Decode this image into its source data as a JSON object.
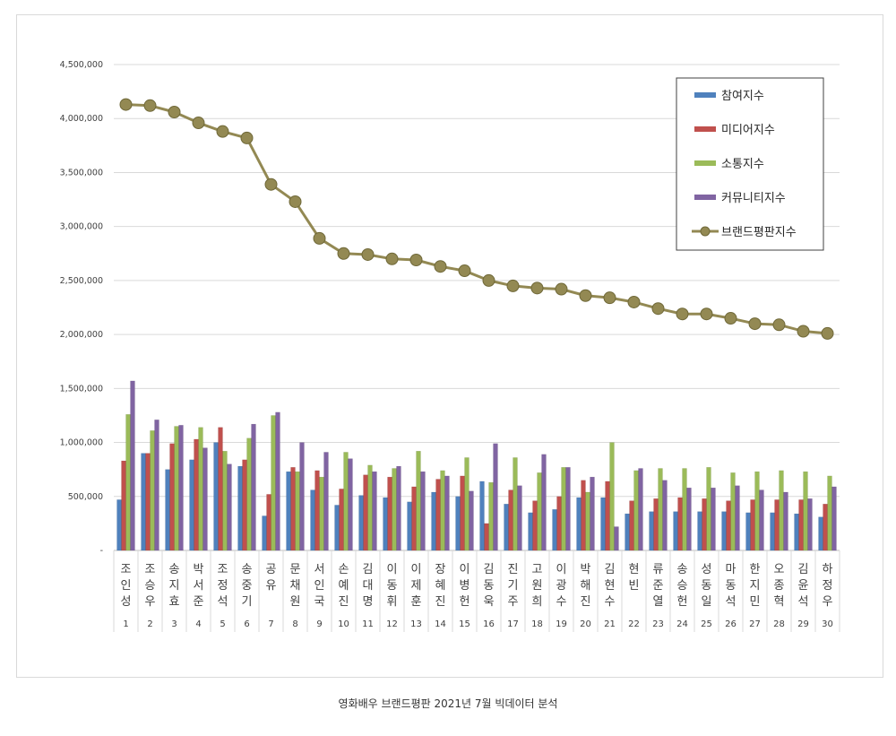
{
  "caption": "영화배우 브랜드평판  2021년 7월 빅데이터 분석",
  "chart_data": {
    "type": "bar",
    "ylim": [
      0,
      4500000
    ],
    "y_ticks": [
      "-",
      "500,000",
      "1,000,000",
      "1,500,000",
      "2,000,000",
      "2,500,000",
      "3,000,000",
      "3,500,000",
      "4,000,000",
      "4,500,000"
    ],
    "grid": true,
    "legend_position": "top-right",
    "categories": [
      "조인성",
      "조승우",
      "송지효",
      "박서준",
      "조정석",
      "송중기",
      "공유",
      "문채원",
      "서인국",
      "손예진",
      "김대명",
      "이동휘",
      "이제훈",
      "장혜진",
      "이병헌",
      "김동욱",
      "진기주",
      "고원희",
      "이광수",
      "박해진",
      "김현수",
      "현빈",
      "류준열",
      "송승헌",
      "성동일",
      "마동석",
      "한지민",
      "오종혁",
      "김윤석",
      "하정우"
    ],
    "ranks": [
      "1",
      "2",
      "3",
      "4",
      "5",
      "6",
      "7",
      "8",
      "9",
      "10",
      "11",
      "12",
      "13",
      "14",
      "15",
      "16",
      "17",
      "18",
      "19",
      "20",
      "21",
      "22",
      "23",
      "24",
      "25",
      "26",
      "27",
      "28",
      "29",
      "30"
    ],
    "series": [
      {
        "name": "참여지수",
        "type": "bar",
        "color": "#4f81bd",
        "values": [
          470000,
          900000,
          750000,
          840000,
          1000000,
          780000,
          320000,
          730000,
          560000,
          420000,
          510000,
          490000,
          450000,
          540000,
          500000,
          640000,
          430000,
          350000,
          380000,
          490000,
          490000,
          340000,
          360000,
          360000,
          360000,
          360000,
          350000,
          350000,
          340000,
          310000
        ]
      },
      {
        "name": "미디어지수",
        "type": "bar",
        "color": "#c0504d",
        "values": [
          830000,
          900000,
          990000,
          1030000,
          1140000,
          840000,
          520000,
          770000,
          740000,
          570000,
          700000,
          680000,
          590000,
          660000,
          690000,
          250000,
          560000,
          460000,
          500000,
          650000,
          640000,
          460000,
          480000,
          490000,
          480000,
          460000,
          470000,
          470000,
          470000,
          430000
        ]
      },
      {
        "name": "소통지수",
        "type": "bar",
        "color": "#9bbb59",
        "values": [
          1260000,
          1110000,
          1150000,
          1140000,
          920000,
          1040000,
          1250000,
          730000,
          680000,
          910000,
          790000,
          760000,
          920000,
          740000,
          860000,
          630000,
          860000,
          720000,
          770000,
          540000,
          1000000,
          740000,
          760000,
          760000,
          770000,
          720000,
          730000,
          740000,
          730000,
          690000
        ]
      },
      {
        "name": "커뮤니티지수",
        "type": "bar",
        "color": "#8064a2",
        "values": [
          1570000,
          1210000,
          1160000,
          950000,
          800000,
          1170000,
          1280000,
          1000000,
          910000,
          850000,
          730000,
          780000,
          730000,
          690000,
          550000,
          990000,
          600000,
          890000,
          770000,
          680000,
          220000,
          760000,
          650000,
          580000,
          580000,
          600000,
          560000,
          540000,
          480000,
          590000
        ]
      },
      {
        "name": "브랜드평판지수",
        "type": "line",
        "color": "#938953",
        "values": [
          4130000,
          4120000,
          4060000,
          3960000,
          3880000,
          3820000,
          3390000,
          3230000,
          2890000,
          2750000,
          2740000,
          2700000,
          2690000,
          2630000,
          2590000,
          2500000,
          2450000,
          2430000,
          2420000,
          2360000,
          2340000,
          2300000,
          2240000,
          2190000,
          2190000,
          2150000,
          2100000,
          2090000,
          2030000,
          2010000
        ]
      }
    ]
  }
}
